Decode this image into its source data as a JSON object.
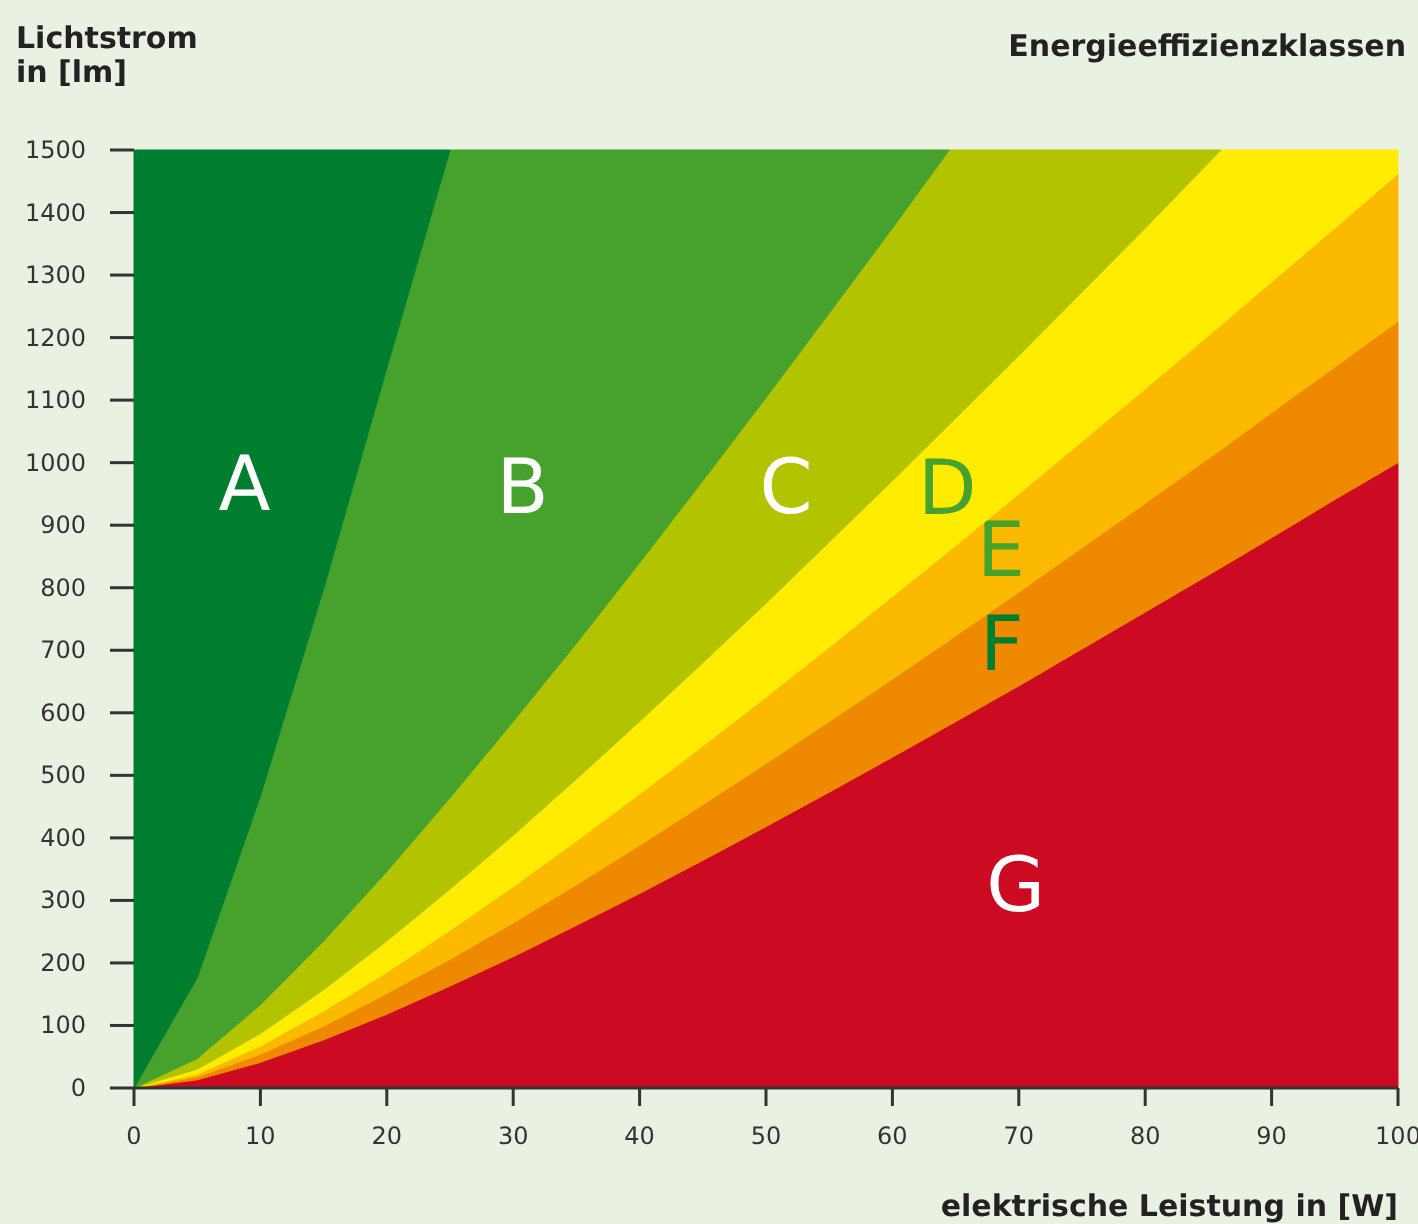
{
  "chart_data": {
    "type": "area",
    "stacked": true,
    "legend": false,
    "legend_title": "Energieeffizienzklassen",
    "xlabel": "elektrische Leistung in [W]",
    "ylabel": "Lichtstrom\nin [lm]",
    "x": [
      0,
      5,
      10,
      15,
      20,
      25,
      30,
      35,
      40,
      45,
      50,
      55,
      60,
      64.5,
      70,
      75,
      80,
      86,
      90,
      95,
      100
    ],
    "xlim": [
      0,
      100
    ],
    "xticks": [
      0,
      10,
      20,
      30,
      40,
      50,
      60,
      70,
      80,
      90,
      100
    ],
    "ylim": [
      0,
      1500
    ],
    "yticks": [
      0,
      100,
      200,
      300,
      400,
      500,
      600,
      700,
      800,
      900,
      1000,
      1100,
      1200,
      1300,
      1400,
      1500
    ],
    "series": [
      {
        "name": "G",
        "color": "#cc0a22",
        "values": [
          0,
          13,
          41,
          77,
          118,
          163,
          210,
          260,
          311,
          364,
          418,
          473,
          529,
          580,
          643,
          702,
          761,
          832,
          880,
          941,
          1000
        ]
      },
      {
        "name": "F",
        "color": "#ef8a00",
        "values": [
          0,
          5,
          13,
          22,
          33,
          43,
          54,
          65,
          77,
          89,
          101,
          113,
          125,
          136,
          150,
          162,
          174,
          189,
          200,
          212,
          226
        ]
      },
      {
        "name": "E",
        "color": "#fbba00",
        "values": [
          0,
          4,
          13,
          24,
          34,
          46,
          58,
          70,
          82,
          94,
          106,
          119,
          132,
          143,
          157,
          170,
          183,
          199,
          209,
          222,
          236
        ]
      },
      {
        "name": "D",
        "color": "#ffec00",
        "values": [
          0,
          8,
          20,
          34,
          50,
          66,
          82,
          99,
          116,
          133,
          150,
          168,
          185,
          202,
          221,
          239,
          257,
          280,
          211,
          125,
          38
        ]
      },
      {
        "name": "C",
        "color": "#b2c300",
        "x": [
          0,
          5,
          10,
          15,
          20,
          25,
          30,
          35,
          40,
          45,
          50,
          55,
          60,
          64.5,
          70,
          75,
          80,
          86
        ],
        "values": [
          0,
          17,
          46,
          78,
          111,
          146,
          182,
          217,
          254,
          291,
          329,
          366,
          404,
          439,
          329,
          227,
          125,
          0
        ]
      },
      {
        "name": "B",
        "color": "#47a22d",
        "x": [
          0,
          5,
          10,
          15,
          20,
          25,
          30,
          35,
          40,
          45,
          50,
          55,
          60,
          64.5
        ],
        "values": [
          0,
          129,
          334,
          563,
          805,
          1036,
          914,
          789,
          660,
          529,
          396,
          261,
          125,
          0
        ]
      },
      {
        "name": "A",
        "color": "#007e2f",
        "x": [
          0,
          5,
          10,
          15,
          20,
          25
        ],
        "values": [
          1500,
          1324,
          1033,
          702,
          349,
          0
        ]
      }
    ]
  }
}
